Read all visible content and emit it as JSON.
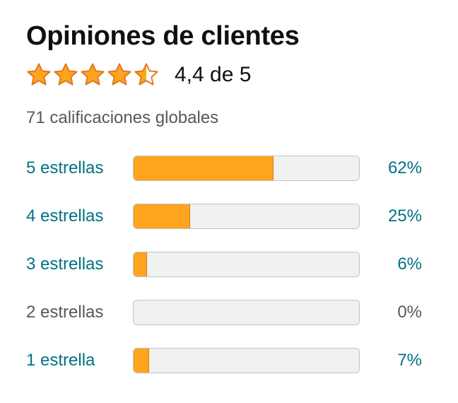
{
  "header": {
    "title": "Opiniones de clientes"
  },
  "summary": {
    "stars": 4.4,
    "rating_text": "4,4 de 5",
    "total_ratings": "71 calificaciones globales",
    "star_color": "#ffa41c",
    "star_outline_color": "#de7921"
  },
  "histogram": [
    {
      "label": "5 estrellas",
      "percent_text": "62%",
      "value": 0.62,
      "link": true
    },
    {
      "label": "4 estrellas",
      "percent_text": "25%",
      "value": 0.25,
      "link": true
    },
    {
      "label": "3 estrellas",
      "percent_text": "6%",
      "value": 0.06,
      "link": true
    },
    {
      "label": "2 estrellas",
      "percent_text": "0%",
      "value": 0.0,
      "link": false
    },
    {
      "label": "1 estrella",
      "percent_text": "7%",
      "value": 0.07,
      "link": true
    }
  ],
  "colors": {
    "link": "#007185",
    "muted": "#565959",
    "bar_fill": "#ffa41c",
    "bar_track": "#f0f2f2"
  }
}
